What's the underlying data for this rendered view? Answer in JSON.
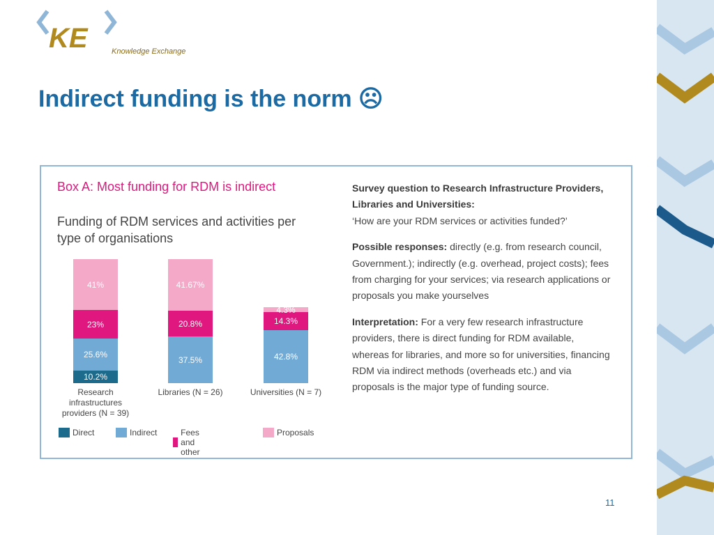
{
  "logo": {
    "mark": "KE",
    "name": "Knowledge Exchange"
  },
  "slide_title": "Indirect funding is the norm ☹",
  "box_heading": "Box A: Most funding for RDM is indirect",
  "chart_data": {
    "type": "stacked-bar",
    "title": "Funding of RDM services and activities per type of organisations",
    "categories": [
      "Research infrastructures providers (N = 39)",
      "Libraries (N = 26)",
      "Universities (N = 7)"
    ],
    "series": [
      {
        "name": "Direct",
        "color": "#1d6b8c",
        "values": [
          10.2,
          null,
          null
        ],
        "value_labels": [
          "10.2%",
          null,
          null
        ]
      },
      {
        "name": "Indirect",
        "color": "#72aad6",
        "values": [
          25.6,
          37.5,
          42.8
        ],
        "value_labels": [
          "25.6%",
          "37.5%",
          "42.8%"
        ]
      },
      {
        "name": "Fees and other",
        "color": "#e0177f",
        "values": [
          23,
          20.8,
          14.3
        ],
        "value_labels": [
          "23%",
          "20.8%",
          "14.3%"
        ]
      },
      {
        "name": "Proposals",
        "color": "#f4a9c9",
        "values": [
          41,
          41.67,
          4.3
        ],
        "value_labels": [
          "41%",
          "41.67%",
          "4.3%"
        ]
      }
    ]
  },
  "notes": {
    "question_label": "Survey question to Research Infrastructure Providers, Libraries and Universities:",
    "question": "‘How are your RDM services or activities funded?’",
    "responses_label": "Possible responses:",
    "responses": "directly (e.g. from research council, Government.); indirectly (e.g. overhead, project costs); fees from charging for your services; via research applications or proposals you make yourselves",
    "interpretation_label": "Interpretation:",
    "interpretation": "For a very few research infrastructure providers, there is direct funding for RDM available, whereas for libraries, and more so for universities, financing RDM via indirect methods (overheads etc.) and via proposals is the major type of funding source."
  },
  "page_number": "11"
}
